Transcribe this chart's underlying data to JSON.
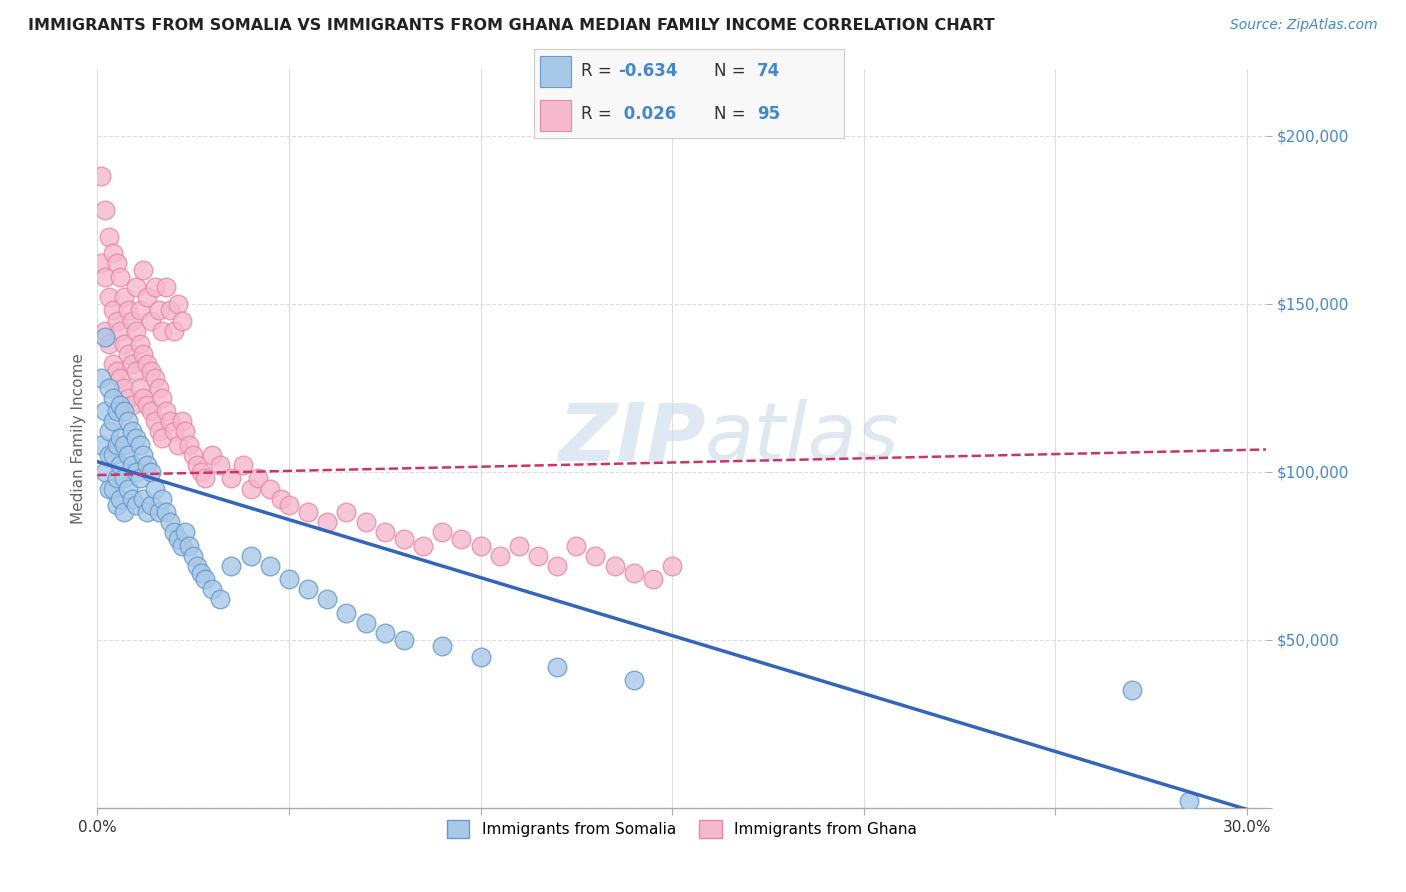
{
  "title": "IMMIGRANTS FROM SOMALIA VS IMMIGRANTS FROM GHANA MEDIAN FAMILY INCOME CORRELATION CHART",
  "source": "Source: ZipAtlas.com",
  "ylabel": "Median Family Income",
  "xlim": [
    0.0,
    0.305
  ],
  "ylim": [
    0,
    220000
  ],
  "xticks": [
    0.0,
    0.05,
    0.1,
    0.15,
    0.2,
    0.25,
    0.3
  ],
  "xticklabels": [
    "0.0%",
    "",
    "",
    "",
    "",
    "",
    "30.0%"
  ],
  "yticks": [
    0,
    50000,
    100000,
    150000,
    200000
  ],
  "yticklabels": [
    "",
    "$50,000",
    "$100,000",
    "$150,000",
    "$200,000"
  ],
  "somalia_color": "#a8c8e8",
  "somalia_edge": "#6699cc",
  "ghana_color": "#f5b8cc",
  "ghana_edge": "#e888a8",
  "regression_somalia_color": "#3366bb",
  "regression_ghana_color": "#cc3366",
  "regression_ghana_linestyle": "--",
  "watermark": "ZIPAtlas",
  "background_color": "#ffffff",
  "grid_color": "#dddddd",
  "title_color": "#222222",
  "axis_label_color": "#666666",
  "ytick_color": "#4488cc",
  "source_color": "#4488cc",
  "legend_box_color": "#f5f5f5",
  "legend_border_color": "#cccccc",
  "legend_R_label_color": "#333333",
  "legend_R_value_color": "#4488cc",
  "somalia_scatter_x": [
    0.001,
    0.001,
    0.002,
    0.002,
    0.002,
    0.003,
    0.003,
    0.003,
    0.003,
    0.004,
    0.004,
    0.004,
    0.004,
    0.005,
    0.005,
    0.005,
    0.005,
    0.006,
    0.006,
    0.006,
    0.006,
    0.007,
    0.007,
    0.007,
    0.007,
    0.008,
    0.008,
    0.008,
    0.009,
    0.009,
    0.009,
    0.01,
    0.01,
    0.01,
    0.011,
    0.011,
    0.012,
    0.012,
    0.013,
    0.013,
    0.014,
    0.014,
    0.015,
    0.016,
    0.017,
    0.018,
    0.019,
    0.02,
    0.021,
    0.022,
    0.023,
    0.024,
    0.025,
    0.026,
    0.027,
    0.028,
    0.03,
    0.032,
    0.035,
    0.04,
    0.045,
    0.05,
    0.055,
    0.06,
    0.065,
    0.07,
    0.075,
    0.08,
    0.09,
    0.1,
    0.12,
    0.14,
    0.27,
    0.285
  ],
  "somalia_scatter_y": [
    128000,
    108000,
    140000,
    118000,
    100000,
    125000,
    112000,
    105000,
    95000,
    122000,
    115000,
    105000,
    95000,
    118000,
    108000,
    98000,
    90000,
    120000,
    110000,
    102000,
    92000,
    118000,
    108000,
    98000,
    88000,
    115000,
    105000,
    95000,
    112000,
    102000,
    92000,
    110000,
    100000,
    90000,
    108000,
    98000,
    105000,
    92000,
    102000,
    88000,
    100000,
    90000,
    95000,
    88000,
    92000,
    88000,
    85000,
    82000,
    80000,
    78000,
    82000,
    78000,
    75000,
    72000,
    70000,
    68000,
    65000,
    62000,
    72000,
    75000,
    72000,
    68000,
    65000,
    62000,
    58000,
    55000,
    52000,
    50000,
    48000,
    45000,
    42000,
    38000,
    35000,
    2000
  ],
  "ghana_scatter_x": [
    0.001,
    0.001,
    0.002,
    0.002,
    0.002,
    0.003,
    0.003,
    0.003,
    0.004,
    0.004,
    0.004,
    0.005,
    0.005,
    0.005,
    0.006,
    0.006,
    0.006,
    0.007,
    0.007,
    0.007,
    0.008,
    0.008,
    0.008,
    0.009,
    0.009,
    0.009,
    0.01,
    0.01,
    0.011,
    0.011,
    0.012,
    0.012,
    0.013,
    0.013,
    0.014,
    0.014,
    0.015,
    0.015,
    0.016,
    0.016,
    0.017,
    0.017,
    0.018,
    0.019,
    0.02,
    0.021,
    0.022,
    0.023,
    0.024,
    0.025,
    0.026,
    0.027,
    0.028,
    0.03,
    0.032,
    0.035,
    0.038,
    0.04,
    0.042,
    0.045,
    0.048,
    0.05,
    0.055,
    0.06,
    0.065,
    0.07,
    0.075,
    0.08,
    0.085,
    0.09,
    0.095,
    0.1,
    0.105,
    0.11,
    0.115,
    0.12,
    0.125,
    0.13,
    0.135,
    0.14,
    0.145,
    0.15,
    0.01,
    0.011,
    0.012,
    0.013,
    0.014,
    0.015,
    0.016,
    0.017,
    0.018,
    0.019,
    0.02,
    0.021,
    0.022
  ],
  "ghana_scatter_y": [
    188000,
    162000,
    178000,
    158000,
    142000,
    170000,
    152000,
    138000,
    165000,
    148000,
    132000,
    162000,
    145000,
    130000,
    158000,
    142000,
    128000,
    152000,
    138000,
    125000,
    148000,
    135000,
    122000,
    145000,
    132000,
    120000,
    142000,
    130000,
    138000,
    125000,
    135000,
    122000,
    132000,
    120000,
    130000,
    118000,
    128000,
    115000,
    125000,
    112000,
    122000,
    110000,
    118000,
    115000,
    112000,
    108000,
    115000,
    112000,
    108000,
    105000,
    102000,
    100000,
    98000,
    105000,
    102000,
    98000,
    102000,
    95000,
    98000,
    95000,
    92000,
    90000,
    88000,
    85000,
    88000,
    85000,
    82000,
    80000,
    78000,
    82000,
    80000,
    78000,
    75000,
    78000,
    75000,
    72000,
    78000,
    75000,
    72000,
    70000,
    68000,
    72000,
    155000,
    148000,
    160000,
    152000,
    145000,
    155000,
    148000,
    142000,
    155000,
    148000,
    142000,
    150000,
    145000
  ],
  "soma_R_str": "-0.634",
  "soma_N_str": "74",
  "ghana_R_str": "0.026",
  "ghana_N_str": "95"
}
